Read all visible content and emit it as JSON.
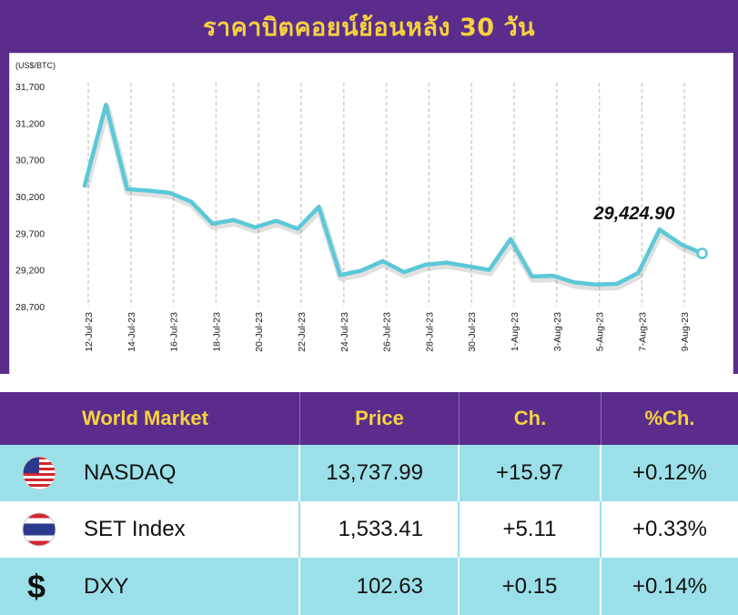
{
  "title": "ราคาบิตคอยน์ย้อนหลัง 30 วัน",
  "chart_data": {
    "type": "line",
    "unit_label": "(US$/BTC)",
    "ylim": [
      28700,
      31700
    ],
    "yticks": [
      "31,700",
      "31,200",
      "30,700",
      "30,200",
      "29,700",
      "29,200",
      "28,700"
    ],
    "ytick_values": [
      31700,
      31200,
      30700,
      30200,
      29700,
      29200,
      28700
    ],
    "xtick_labels": [
      "12-Jul-23",
      "14-Jul-23",
      "16-Jul-23",
      "18-Jul-23",
      "20-Jul-23",
      "22-Jul-23",
      "24-Jul-23",
      "26-Jul-23",
      "28-Jul-23",
      "30-Jul-23",
      "1-Aug-23",
      "3-Aug-23",
      "5-Aug-23",
      "7-Aug-23",
      "9-Aug-23"
    ],
    "series": [
      {
        "color": "#5bc8d8",
        "values": [
          30350,
          31450,
          30300,
          30280,
          30250,
          30130,
          29830,
          29880,
          29780,
          29870,
          29760,
          30060,
          29130,
          29190,
          29320,
          29170,
          29270,
          29300,
          29250,
          29200,
          29620,
          29110,
          29120,
          29030,
          29000,
          29010,
          29160,
          29750,
          29550,
          29424.9
        ]
      }
    ],
    "last_value_label": "29,424.90",
    "grid": "vertical"
  },
  "table": {
    "headers": [
      "World Market",
      "Price",
      "Ch.",
      "%Ch."
    ],
    "rows": [
      {
        "icon": "us-flag-icon",
        "name": "NASDAQ",
        "price": "13,737.99",
        "change": "+15.97",
        "pct": "+0.12%"
      },
      {
        "icon": "thai-flag-icon",
        "name": "SET Index",
        "price": "1,533.41",
        "change": "+5.11",
        "pct": "+0.33%"
      },
      {
        "icon": "dollar-icon",
        "name": "DXY",
        "price": "102.63",
        "change": "+0.15",
        "pct": "+0.14%"
      }
    ]
  },
  "colors": {
    "background": "#5a2d8c",
    "title": "#f7d23e",
    "line": "#5bc8d8",
    "row_highlight": "#9be0e9"
  }
}
